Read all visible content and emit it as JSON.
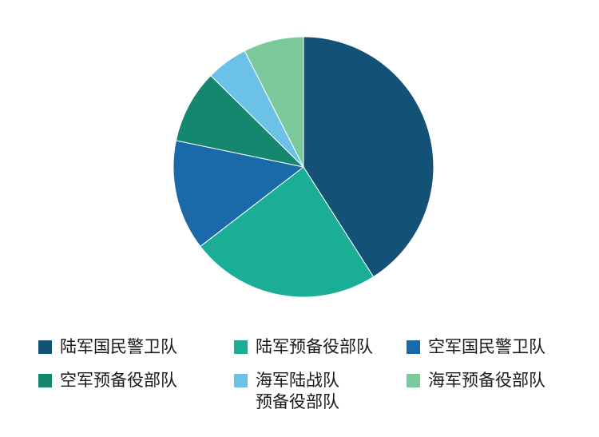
{
  "chart_data": {
    "type": "pie",
    "categories": [
      "陆军国民警卫队",
      "陆军预备役部队",
      "空军国民警卫队",
      "空军预备役部队",
      "海军陆战队\n预备役部队",
      "海军预备役部队"
    ],
    "values": [
      42.2,
      24.3,
      14.1,
      9.4,
      5.3,
      7.7
    ],
    "unit": "%",
    "colors": [
      "#135276",
      "#1bae96",
      "#1a6aaa",
      "#15876e",
      "#6cc1e8",
      "#7cc99c"
    ],
    "start_angle_deg": 0,
    "direction": "clockwise",
    "title": "",
    "legend_position": "bottom"
  }
}
